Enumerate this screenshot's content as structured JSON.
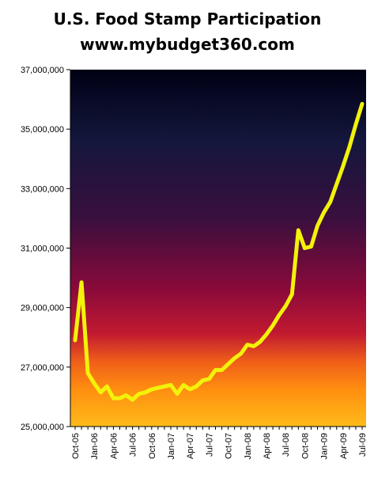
{
  "chart_data": {
    "type": "line",
    "title": "U.S. Food Stamp Participation",
    "subtitle": "www.mybudget360.com",
    "xlabel": "",
    "ylabel": "",
    "ylim": [
      25000000,
      37000000
    ],
    "y_ticks": [
      25000000,
      27000000,
      29000000,
      31000000,
      33000000,
      35000000,
      37000000
    ],
    "y_tick_labels": [
      "25,000,000",
      "27,000,000",
      "29,000,000",
      "31,000,000",
      "33,000,000",
      "35,000,000",
      "37,000,000"
    ],
    "x_tick_labels": [
      "Oct-05",
      "Jan-06",
      "Apr-06",
      "Jul-06",
      "Oct-06",
      "Jan-07",
      "Apr-07",
      "Jul-07",
      "Oct-07",
      "Jan-08",
      "Apr-08",
      "Jul-08",
      "Oct-08",
      "Jan-09",
      "Apr-09",
      "Jul-09"
    ],
    "x": [
      "Oct-05",
      "Nov-05",
      "Dec-05",
      "Jan-06",
      "Feb-06",
      "Mar-06",
      "Apr-06",
      "May-06",
      "Jun-06",
      "Jul-06",
      "Aug-06",
      "Sep-06",
      "Oct-06",
      "Nov-06",
      "Dec-06",
      "Jan-07",
      "Feb-07",
      "Mar-07",
      "Apr-07",
      "May-07",
      "Jun-07",
      "Jul-07",
      "Aug-07",
      "Sep-07",
      "Oct-07",
      "Nov-07",
      "Dec-07",
      "Jan-08",
      "Feb-08",
      "Mar-08",
      "Apr-08",
      "May-08",
      "Jun-08",
      "Jul-08",
      "Aug-08",
      "Sep-08",
      "Oct-08",
      "Nov-08",
      "Dec-08",
      "Jan-09",
      "Feb-09",
      "Mar-09",
      "Apr-09",
      "May-09",
      "Jun-09",
      "Jul-09"
    ],
    "series": [
      {
        "values": [
          27900000,
          29850000,
          26800000,
          26450000,
          26150000,
          26350000,
          25950000,
          25950000,
          26050000,
          25900000,
          26100000,
          26150000,
          26250000,
          26300000,
          26350000,
          26400000,
          26100000,
          26400000,
          26250000,
          26350000,
          26550000,
          26600000,
          26900000,
          26900000,
          27100000,
          27300000,
          27450000,
          27750000,
          27700000,
          27850000,
          28100000,
          28400000,
          28750000,
          29050000,
          29450000,
          31600000,
          31000000,
          31050000,
          31750000,
          32200000,
          32550000,
          33150000,
          33750000,
          34400000,
          35150000,
          35850000
        ],
        "color": "#f2f20a"
      }
    ],
    "grid": false,
    "legend": "none",
    "colors": {
      "background": "#ffffff",
      "plot_gradient": [
        "#000014",
        "#1a1a4a",
        "#6a0a3a",
        "#b00a3a",
        "#e8501a",
        "#ff9a10",
        "#ffc020"
      ],
      "line": "#f2f20a",
      "axis": "#000000"
    }
  }
}
